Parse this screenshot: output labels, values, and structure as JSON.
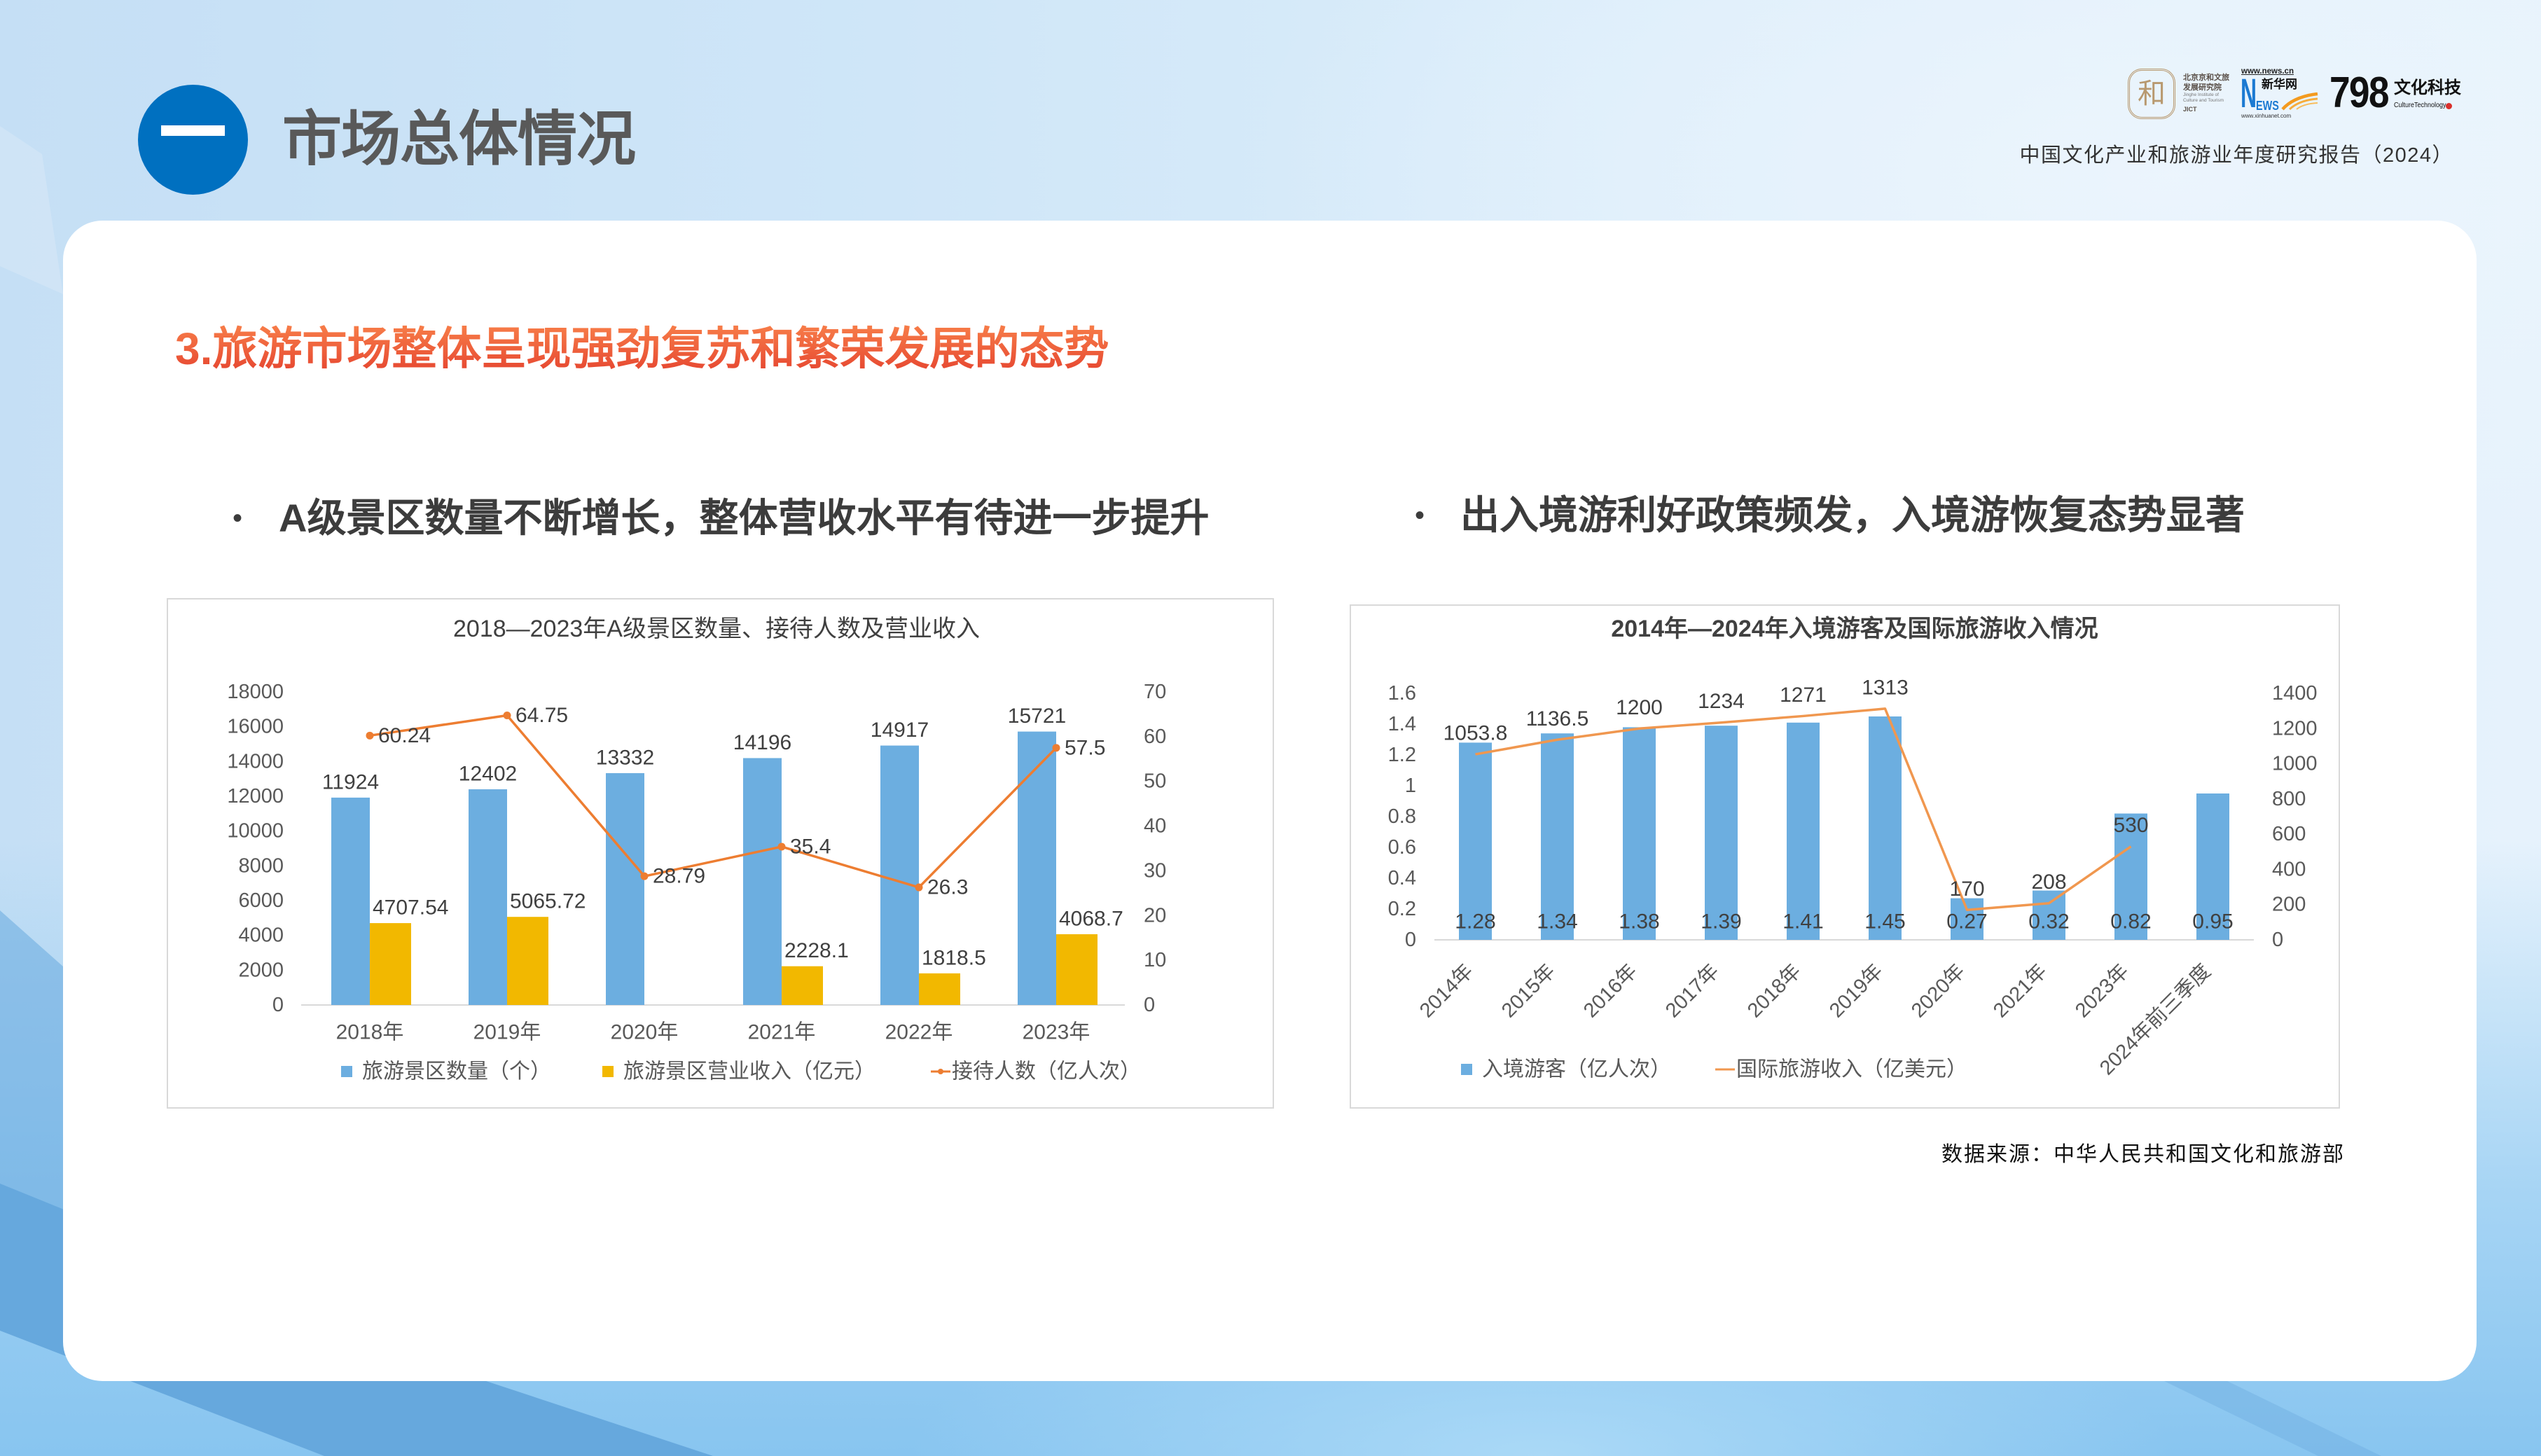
{
  "header": {
    "section_number": "一",
    "section_title": "市场总体情况",
    "report_title": "中国文化产业和旅游业年度研究报告（2024）",
    "logos": {
      "jict": {
        "seal_char": "和",
        "name_cn_line1": "北京京和文旅",
        "name_cn_line2": "发展研究院",
        "name_en_line1": "Jinghe Institute of",
        "name_en_line2": "Culture and Tourism",
        "abbr": "JICT"
      },
      "xinhua": {
        "url_top": "www.news.cn",
        "letter_n": "N",
        "letters_ews": "EWS",
        "name_cn": "新华网",
        "url_bottom": "www.xinhuanet.com"
      },
      "culture_tech": {
        "number": "798",
        "name_cn": "文化科技",
        "name_en": "CultureTechnology"
      }
    }
  },
  "slide": {
    "heading": "3.旅游市场整体呈现强劲复苏和繁荣发展的态势",
    "bullet_symbol": "•",
    "bullets": [
      "A级景区数量不断增长，整体营收水平有待进一步提升",
      "出入境游利好政策频发，入境游恢复态势显著"
    ],
    "source_note": "数据来源：中华人民共和国文化和旅游部"
  },
  "colors": {
    "section_badge": "#0070c0",
    "heading_gradient_top": "#f8804a",
    "heading_gradient_bottom": "#e5432f",
    "bar_blue": "#6caee0",
    "bar_gold": "#f2b800",
    "line_orange": "#ed7d31",
    "line_orange_light": "#f0974f"
  },
  "chart_data": [
    {
      "type": "bar",
      "combo": "bar+line",
      "title": "2018—2023年A级景区数量、接待人数及营业收入",
      "xlabel": "",
      "ylabel": "",
      "grid": false,
      "legend_position": "bottom",
      "categories": [
        "2018年",
        "2019年",
        "2020年",
        "2021年",
        "2022年",
        "2023年"
      ],
      "series": [
        {
          "name": "旅游景区数量（个）",
          "type": "bar",
          "axis": "left",
          "color": "#6caee0",
          "label_position": "above",
          "values": [
            11924,
            12402,
            13332,
            14196,
            14917,
            15721
          ]
        },
        {
          "name": "旅游景区营业收入（亿元）",
          "type": "bar",
          "axis": "left",
          "color": "#f2b800",
          "label_position": "above",
          "values": [
            4707.54,
            5065.72,
            null,
            2228.1,
            1818.5,
            4068.7
          ]
        },
        {
          "name": "接待人数（亿人次）",
          "type": "line",
          "axis": "right",
          "color": "#ed7d31",
          "marker": true,
          "label_position": "right",
          "values": [
            60.24,
            64.75,
            28.79,
            35.4,
            26.3,
            57.5
          ]
        }
      ],
      "y_left": {
        "min": 0,
        "max": 18000,
        "ticks": [
          0,
          2000,
          4000,
          6000,
          8000,
          10000,
          12000,
          14000,
          16000,
          18000
        ]
      },
      "y_right": {
        "min": 0,
        "max": 70,
        "ticks": [
          0,
          10,
          20,
          30,
          40,
          50,
          60,
          70
        ]
      }
    },
    {
      "type": "bar",
      "combo": "bar+line",
      "title": "2014年—2024年入境游客及国际旅游收入情况",
      "xlabel": "",
      "ylabel": "",
      "grid": false,
      "legend_position": "bottom",
      "x_label_rotation": -45,
      "categories": [
        "2014年",
        "2015年",
        "2016年",
        "2017年",
        "2018年",
        "2019年",
        "2020年",
        "2021年",
        "2023年",
        "2024年前三季度"
      ],
      "series": [
        {
          "name": "入境游客（亿人次）",
          "type": "bar",
          "axis": "left",
          "color": "#6caee0",
          "label_position": "inside_base",
          "values": [
            1.28,
            1.34,
            1.38,
            1.39,
            1.41,
            1.45,
            0.27,
            0.32,
            0.82,
            0.95
          ]
        },
        {
          "name": "国际旅游收入（亿美元）",
          "type": "line",
          "axis": "right",
          "color": "#f0974f",
          "marker": false,
          "label_position": "above",
          "values": [
            1053.8,
            1136.5,
            1200,
            1234,
            1271,
            1313,
            170,
            208,
            530,
            null
          ]
        }
      ],
      "y_left": {
        "min": 0,
        "max": 1.6,
        "ticks": [
          0,
          0.2,
          0.4,
          0.6,
          0.8,
          1,
          1.2,
          1.4,
          1.6
        ]
      },
      "y_right": {
        "min": 0,
        "max": 1400,
        "ticks": [
          0,
          200,
          400,
          600,
          800,
          1000,
          1200,
          1400
        ]
      }
    }
  ]
}
